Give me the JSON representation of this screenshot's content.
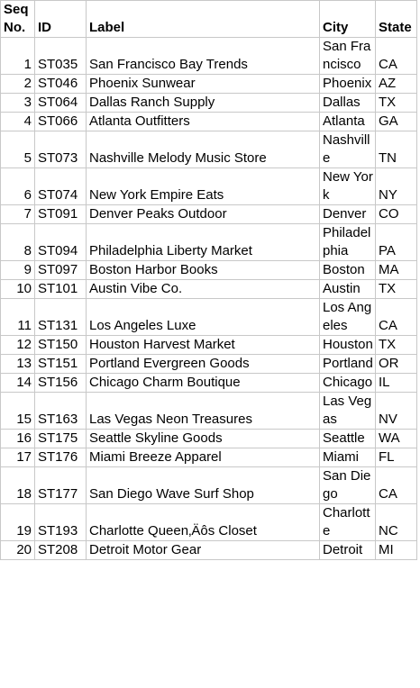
{
  "columns": {
    "seq": "Seq\nNo.",
    "id": "ID",
    "label": "Label",
    "city": "City",
    "state": "State"
  },
  "rows": [
    {
      "seq": "1",
      "id": "ST035",
      "label": "San Francisco Bay Trends",
      "city": "San Francisco",
      "state": "CA"
    },
    {
      "seq": "2",
      "id": "ST046",
      "label": "Phoenix Sunwear",
      "city": "Phoenix",
      "state": "AZ"
    },
    {
      "seq": "3",
      "id": "ST064",
      "label": "Dallas Ranch Supply",
      "city": "Dallas",
      "state": "TX"
    },
    {
      "seq": "4",
      "id": "ST066",
      "label": "Atlanta Outfitters",
      "city": "Atlanta",
      "state": "GA"
    },
    {
      "seq": "5",
      "id": "ST073",
      "label": "Nashville Melody Music Store",
      "city": "Nashville",
      "state": "TN"
    },
    {
      "seq": "6",
      "id": "ST074",
      "label": "New York Empire Eats",
      "city": "New York",
      "state": "NY"
    },
    {
      "seq": "7",
      "id": "ST091",
      "label": "Denver Peaks Outdoor",
      "city": "Denver",
      "state": "CO"
    },
    {
      "seq": "8",
      "id": "ST094",
      "label": "Philadelphia Liberty Market",
      "city": "Philadelphia",
      "state": "PA"
    },
    {
      "seq": "9",
      "id": "ST097",
      "label": "Boston Harbor Books",
      "city": "Boston",
      "state": "MA"
    },
    {
      "seq": "10",
      "id": "ST101",
      "label": "Austin Vibe Co.",
      "city": "Austin",
      "state": "TX"
    },
    {
      "seq": "11",
      "id": "ST131",
      "label": "Los Angeles Luxe",
      "city": "Los Angeles",
      "state": "CA"
    },
    {
      "seq": "12",
      "id": "ST150",
      "label": "Houston Harvest Market",
      "city": "Houston",
      "state": "TX"
    },
    {
      "seq": "13",
      "id": "ST151",
      "label": "Portland Evergreen Goods",
      "city": "Portland",
      "state": "OR"
    },
    {
      "seq": "14",
      "id": "ST156",
      "label": "Chicago Charm Boutique",
      "city": "Chicago",
      "state": "IL"
    },
    {
      "seq": "15",
      "id": "ST163",
      "label": "Las Vegas Neon Treasures",
      "city": "Las Vegas",
      "state": "NV"
    },
    {
      "seq": "16",
      "id": "ST175",
      "label": "Seattle Skyline Goods",
      "city": "Seattle",
      "state": "WA"
    },
    {
      "seq": "17",
      "id": "ST176",
      "label": "Miami Breeze Apparel",
      "city": "Miami",
      "state": "FL"
    },
    {
      "seq": "18",
      "id": "ST177",
      "label": "San Diego Wave Surf Shop",
      "city": "San Diego",
      "state": "CA"
    },
    {
      "seq": "19",
      "id": "ST193",
      "label": "Charlotte Queen‚Äôs Closet",
      "city": "Charlotte",
      "state": "NC"
    },
    {
      "seq": "20",
      "id": "ST208",
      "label": "Detroit Motor Gear",
      "city": "Detroit",
      "state": "MI"
    }
  ]
}
